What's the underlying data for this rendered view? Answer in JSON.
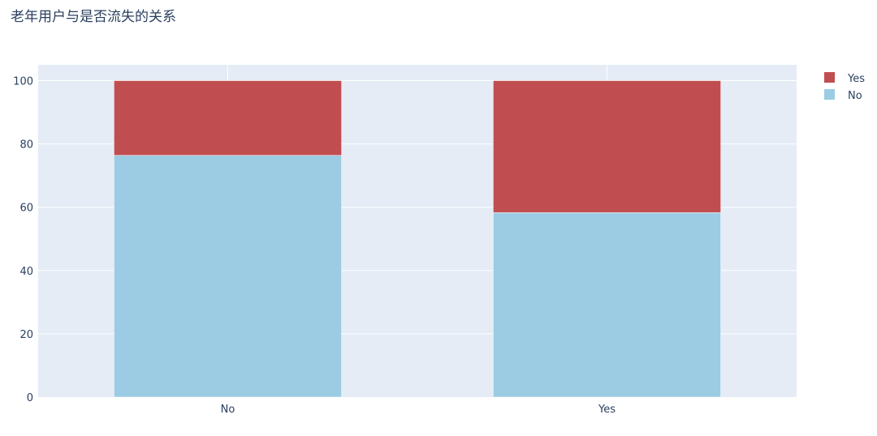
{
  "chart_data": {
    "type": "bar",
    "barmode": "stack",
    "title": "老年用户与是否流失的关系",
    "xlabel": "",
    "ylabel": "",
    "categories": [
      "No",
      "Yes"
    ],
    "series": [
      {
        "name": "No",
        "values": [
          76.4,
          58.3
        ],
        "color": "#9ccbe4"
      },
      {
        "name": "Yes",
        "values": [
          23.6,
          41.7
        ],
        "color": "#c04e51"
      }
    ],
    "ylim": [
      0,
      105
    ],
    "yticks": [
      0,
      20,
      40,
      60,
      80,
      100
    ],
    "grid": true,
    "legend": {
      "placement": "top-right",
      "order": [
        "Yes",
        "No"
      ]
    },
    "colors": {
      "plot_bg": "#e5ecf6",
      "grid": "#ffffff",
      "text": "#2a3f5f"
    }
  }
}
